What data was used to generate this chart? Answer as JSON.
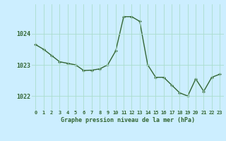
{
  "x": [
    0,
    1,
    2,
    3,
    4,
    5,
    6,
    7,
    8,
    9,
    10,
    11,
    12,
    13,
    14,
    15,
    16,
    17,
    18,
    19,
    20,
    21,
    22,
    23
  ],
  "y": [
    1023.65,
    1023.5,
    1023.3,
    1023.1,
    1023.05,
    1023.0,
    1022.82,
    1022.83,
    1022.87,
    1023.0,
    1023.45,
    1024.55,
    1024.55,
    1024.4,
    1023.0,
    1022.6,
    1022.6,
    1022.35,
    1022.1,
    1022.0,
    1022.55,
    1022.15,
    1022.6,
    1022.7
  ],
  "title": "Graphe pression niveau de la mer (hPa)",
  "bg_color": "#cceeff",
  "line_color": "#336633",
  "marker_color": "#336633",
  "grid_color": "#aaddcc",
  "text_color": "#336633",
  "yticks": [
    1022,
    1023,
    1024
  ],
  "ylim": [
    1021.55,
    1024.95
  ],
  "xlim": [
    -0.5,
    23.5
  ],
  "xtick_labels": [
    "0",
    "1",
    "2",
    "3",
    "4",
    "5",
    "6",
    "7",
    "8",
    "9",
    "10",
    "11",
    "12",
    "13",
    "14",
    "15",
    "16",
    "17",
    "18",
    "19",
    "20",
    "21",
    "22",
    "23"
  ]
}
